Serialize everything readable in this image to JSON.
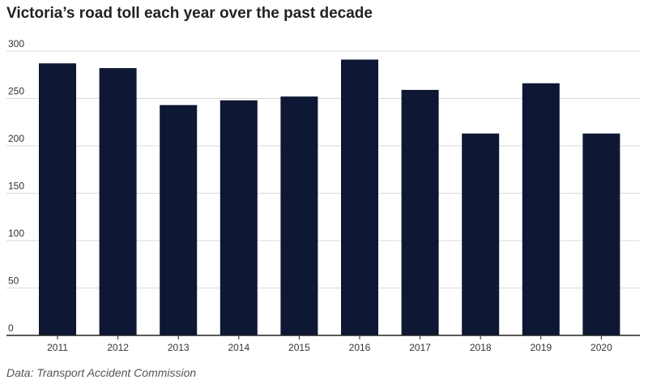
{
  "title": "Victoria’s road toll each year over the past decade",
  "source": "Data: Transport Accident Commission",
  "chart_data": {
    "type": "bar",
    "categories": [
      "2011",
      "2012",
      "2013",
      "2014",
      "2015",
      "2016",
      "2017",
      "2018",
      "2019",
      "2020"
    ],
    "values": [
      287,
      282,
      243,
      248,
      252,
      291,
      259,
      213,
      266,
      213
    ],
    "ylim": [
      0,
      300
    ],
    "yticks": [
      "0",
      "50",
      "100",
      "150",
      "200",
      "250",
      "300"
    ],
    "grid": true,
    "bar_color": "#0e1733",
    "grid_color": "#d9d9d9",
    "axis_color": "#222222"
  }
}
